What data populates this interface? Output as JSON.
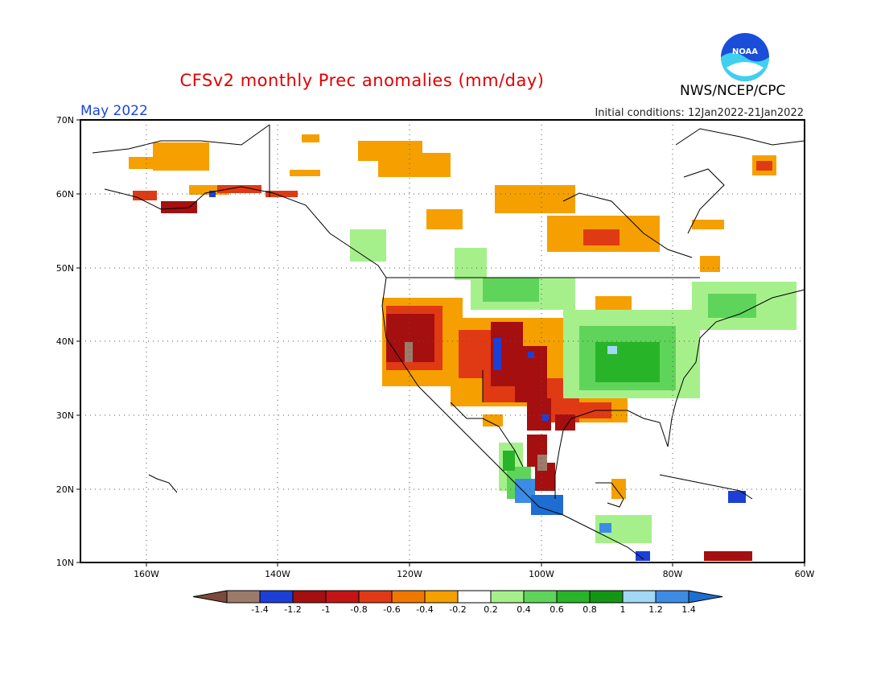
{
  "header": {
    "title": "CFSv2 monthly Prec anomalies (mm/day)",
    "month": "May 2022",
    "initial_conditions": "Initial conditions: 12Jan2022-21Jan2022",
    "organization": "NWS/NCEP/CPC",
    "logo_text": "NOAA"
  },
  "axes": {
    "lat_labels": [
      "70N",
      "60N",
      "50N",
      "40N",
      "30N",
      "20N",
      "10N"
    ],
    "lon_labels": [
      "160W",
      "140W",
      "120W",
      "100W",
      "80W",
      "60W"
    ]
  },
  "colorbar": {
    "labels": [
      "-1.4",
      "-1.2",
      "-1",
      "-0.8",
      "-0.6",
      "-0.4",
      "-0.2",
      "0.2",
      "0.4",
      "0.6",
      "0.8",
      "1",
      "1.2",
      "1.4"
    ],
    "colors": [
      "#7b4a3c",
      "#9c7b6a",
      "#1c3fd6",
      "#a50f0f",
      "#c41414",
      "#e03a14",
      "#f07800",
      "#f5a000",
      "#ffffff",
      "#a6f08c",
      "#5fd45a",
      "#28b428",
      "#149614",
      "#a0d8f5",
      "#3c8ce6",
      "#1e6ed2"
    ]
  }
}
